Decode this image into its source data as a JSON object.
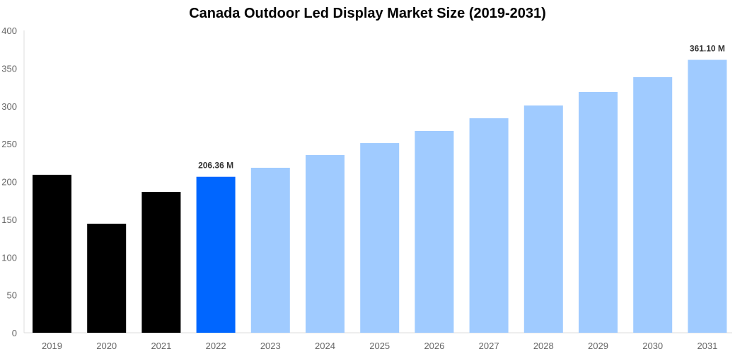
{
  "chart_data": {
    "type": "bar",
    "title": "Canada Outdoor Led Display Market Size (2019-2031)",
    "xlabel": "",
    "ylabel": "",
    "ylim": [
      0,
      400
    ],
    "yticks": [
      0,
      50,
      100,
      150,
      200,
      250,
      300,
      350,
      400
    ],
    "grid": false,
    "categories": [
      "2019",
      "2020",
      "2021",
      "2022",
      "2023",
      "2024",
      "2025",
      "2026",
      "2027",
      "2028",
      "2029",
      "2030",
      "2031"
    ],
    "values": [
      209,
      144.3,
      186.4,
      206.36,
      218.3,
      235.1,
      251,
      267,
      283.8,
      300.7,
      318.5,
      338.2,
      361.1
    ],
    "colors": [
      "#000000",
      "#000000",
      "#000000",
      "#0066ff",
      "#a0cbff",
      "#a0cbff",
      "#a0cbff",
      "#a0cbff",
      "#a0cbff",
      "#a0cbff",
      "#a0cbff",
      "#a0cbff",
      "#a0cbff"
    ],
    "data_labels": [
      {
        "category": "2022",
        "text": "206.36 M"
      },
      {
        "category": "2031",
        "text": "361.10 M"
      }
    ]
  }
}
